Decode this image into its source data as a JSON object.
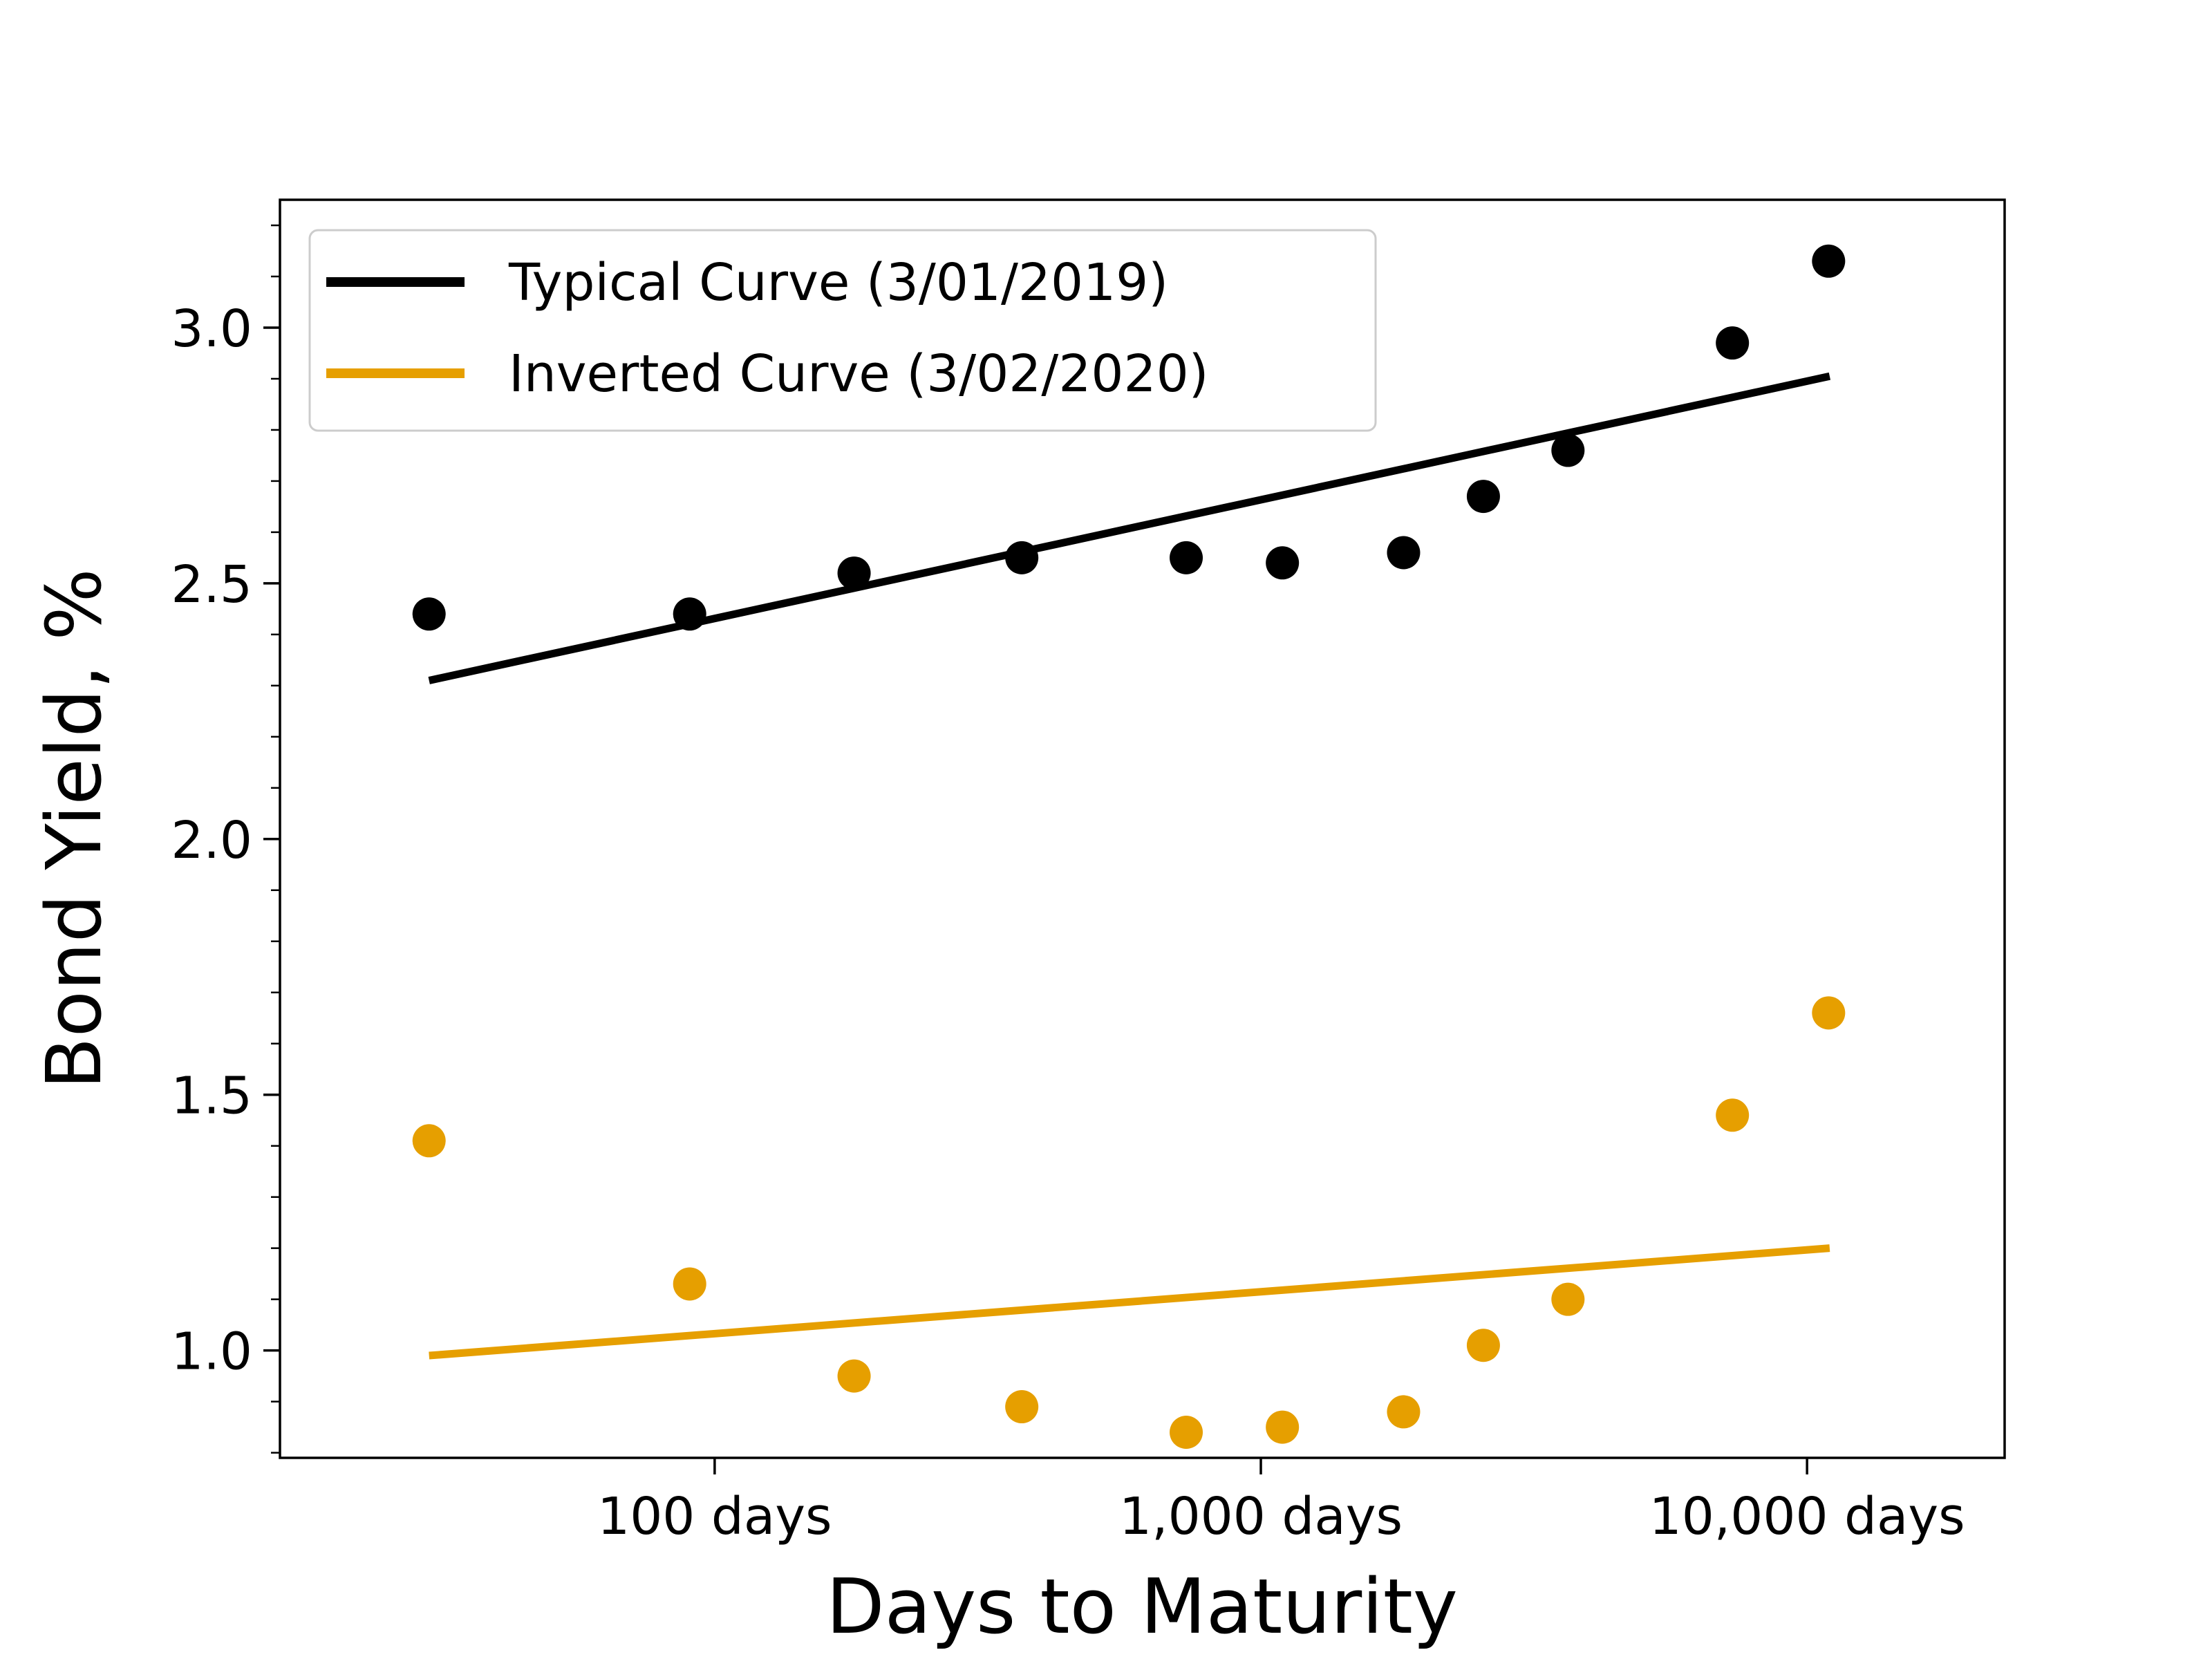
{
  "chart_data": {
    "type": "scatter",
    "xlabel": "Days to Maturity",
    "ylabel": "Bond Yield, %",
    "xscale": "log",
    "xlim": [
      16,
      23000
    ],
    "ylim": [
      0.79,
      3.25
    ],
    "xticks": [
      {
        "value": 100,
        "label": "100 days"
      },
      {
        "value": 1000,
        "label": "1,000 days"
      },
      {
        "value": 10000,
        "label": "10,000 days"
      }
    ],
    "yticks": [
      {
        "value": 1.0,
        "label": "1.0"
      },
      {
        "value": 1.5,
        "label": "1.5"
      },
      {
        "value": 2.0,
        "label": "2.0"
      },
      {
        "value": 2.5,
        "label": "2.5"
      },
      {
        "value": 3.0,
        "label": "3.0"
      }
    ],
    "grid": false,
    "legend_position": "top-left",
    "x": [
      30,
      90,
      180,
      365,
      730,
      1095,
      1825,
      2555,
      3650,
      7300,
      10950
    ],
    "series": [
      {
        "name": "Typical Curve (3/01/2019)",
        "color": "#000000",
        "values": [
          2.44,
          2.44,
          2.52,
          2.55,
          2.55,
          2.54,
          2.56,
          2.67,
          2.76,
          2.97,
          3.13
        ],
        "fit_line": [
          [
            30,
            2.31
          ],
          [
            11000,
            2.905
          ]
        ]
      },
      {
        "name": "Inverted Curve (3/02/2020)",
        "color": "#E69F00",
        "values": [
          1.41,
          1.13,
          0.95,
          0.89,
          0.84,
          0.85,
          0.88,
          1.01,
          1.1,
          1.46,
          1.66
        ],
        "fit_line": [
          [
            30,
            0.99
          ],
          [
            11000,
            1.2
          ]
        ]
      }
    ]
  }
}
